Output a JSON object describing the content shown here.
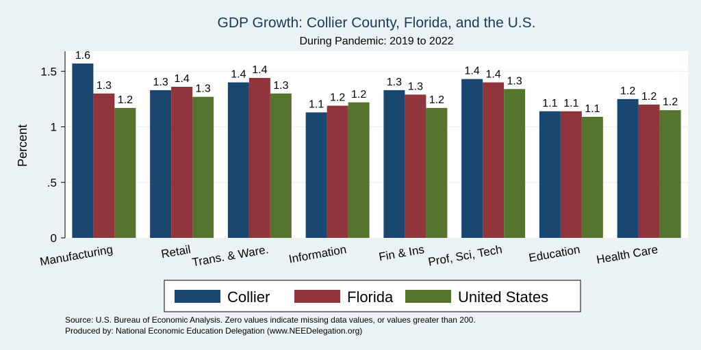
{
  "chart_data": {
    "type": "bar",
    "title": "GDP Growth: Collier County, Florida, and the U.S.",
    "subtitle": "During Pandemic: 2019 to 2022",
    "ylabel": "Percent",
    "xlabel": "",
    "ylim": [
      0,
      1.68
    ],
    "yticks": [
      0,
      0.5,
      1,
      1.5
    ],
    "ytick_labels": [
      "0",
      ".5",
      "1",
      "1.5"
    ],
    "grid": true,
    "legend_position": "bottom",
    "categories": [
      "Manufacturing",
      "Retail",
      "Trans. & Ware.",
      "Information",
      "Fin & Ins",
      "Prof, Sci, Tech",
      "Education",
      "Health Care"
    ],
    "series": [
      {
        "name": "Collier",
        "color": "#1a476f",
        "values": [
          1.57,
          1.33,
          1.4,
          1.13,
          1.33,
          1.43,
          1.14,
          1.25
        ],
        "labels": [
          "1.6",
          "1.3",
          "1.4",
          "1.1",
          "1.3",
          "1.4",
          "1.1",
          "1.2"
        ]
      },
      {
        "name": "Florida",
        "color": "#90353b",
        "values": [
          1.3,
          1.36,
          1.44,
          1.19,
          1.29,
          1.4,
          1.14,
          1.2
        ],
        "labels": [
          "1.3",
          "1.4",
          "1.4",
          "1.2",
          "1.3",
          "1.4",
          "1.1",
          "1.2"
        ]
      },
      {
        "name": "United States",
        "color": "#55752f",
        "values": [
          1.17,
          1.27,
          1.3,
          1.22,
          1.17,
          1.34,
          1.09,
          1.15
        ],
        "labels": [
          "1.2",
          "1.3",
          "1.3",
          "1.2",
          "1.2",
          "1.3",
          "1.1",
          "1.2"
        ]
      }
    ],
    "notes": [
      "Source: U.S. Bureau of Economic Analysis. Zero values indicate missing data values, or values greater than 200.",
      "Produced by: National Economic Education Delegation (www.NEEDelegation.org)"
    ]
  }
}
